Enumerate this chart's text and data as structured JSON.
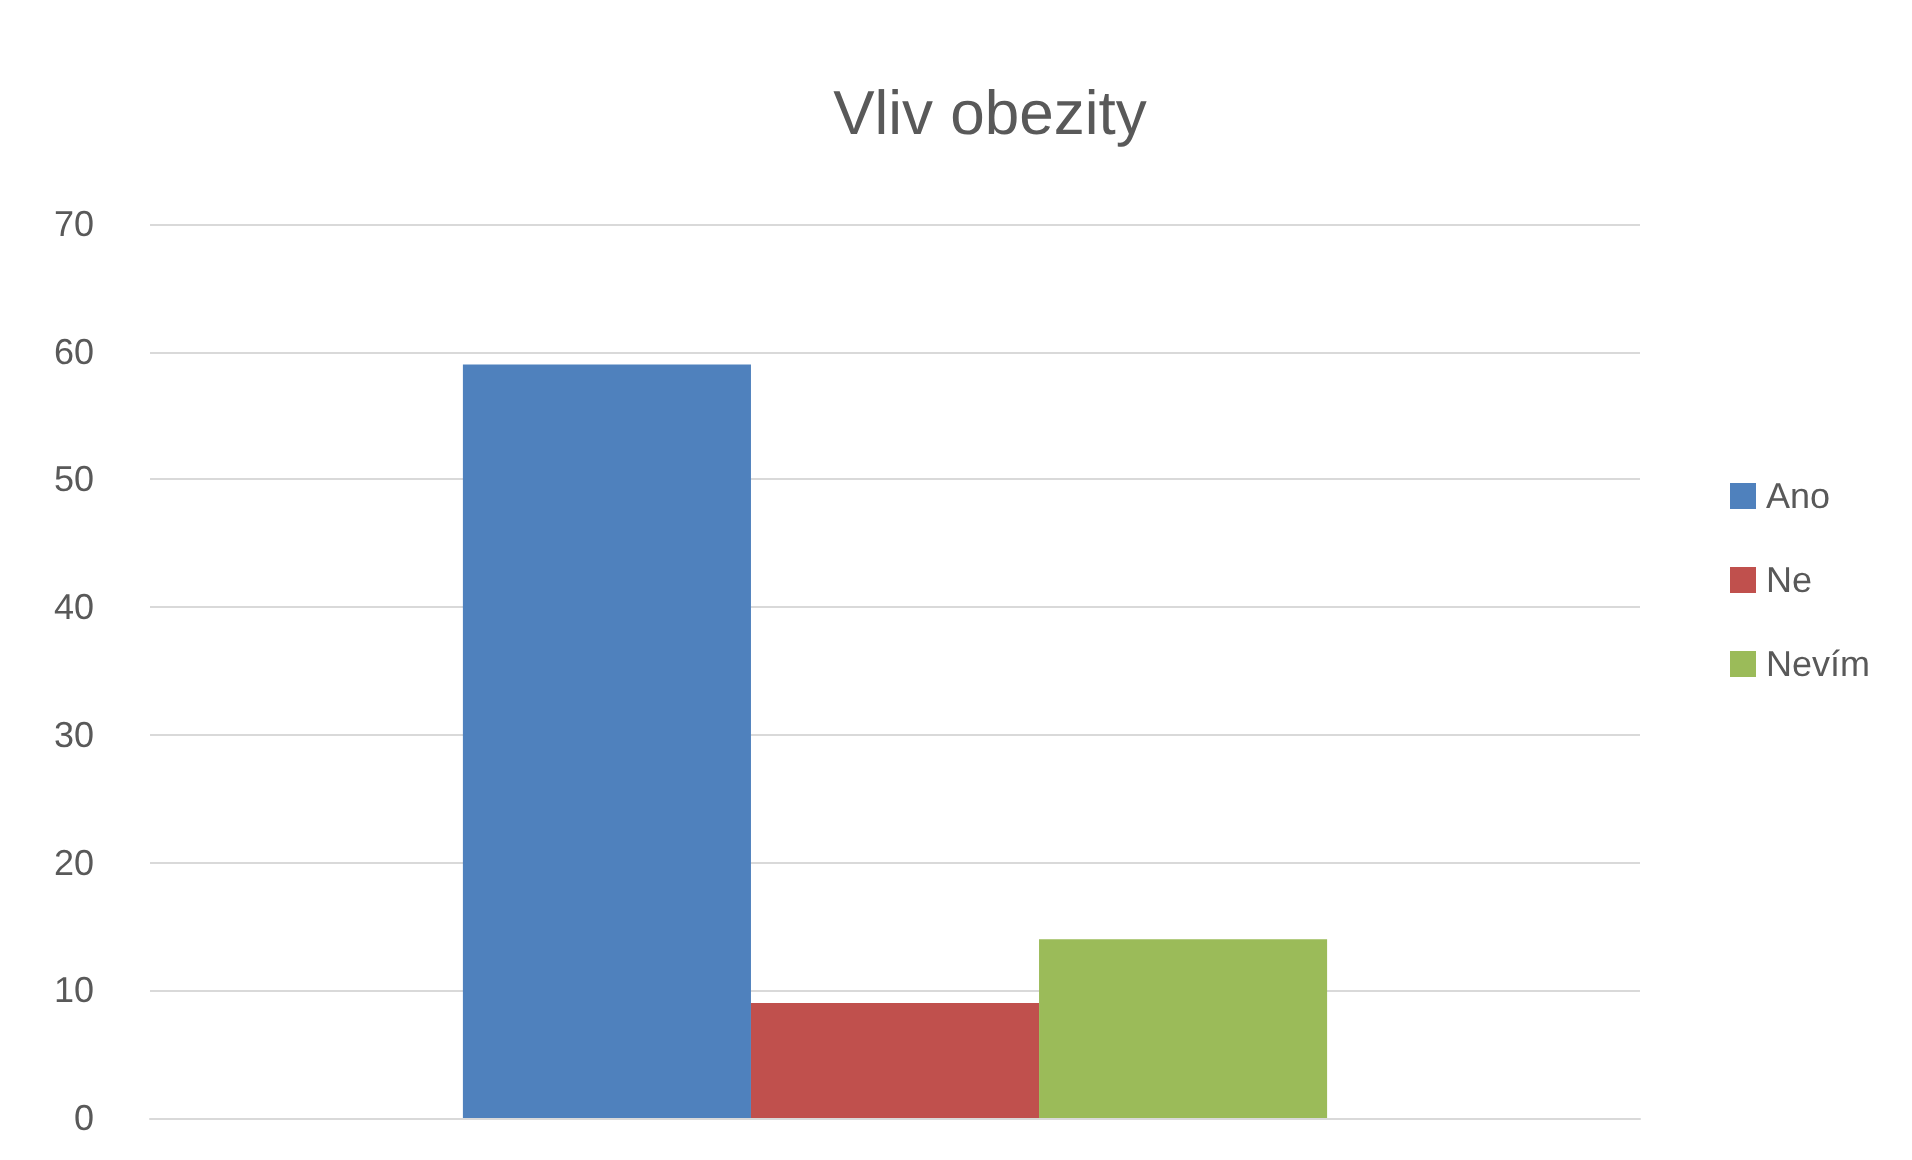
{
  "chart_data": {
    "type": "bar",
    "title": "Vliv obezity",
    "categories": [
      null
    ],
    "series": [
      {
        "name": "Ano",
        "color": "#4f81bd",
        "values": [
          59
        ]
      },
      {
        "name": "Ne",
        "color": "#c0504d",
        "values": [
          9
        ]
      },
      {
        "name": "Nevím",
        "color": "#9bbb59",
        "values": [
          14
        ]
      }
    ],
    "ylim": [
      0,
      70
    ],
    "yticks": [
      0,
      10,
      20,
      30,
      40,
      50,
      60,
      70
    ],
    "grid": "y",
    "legend": "right"
  }
}
